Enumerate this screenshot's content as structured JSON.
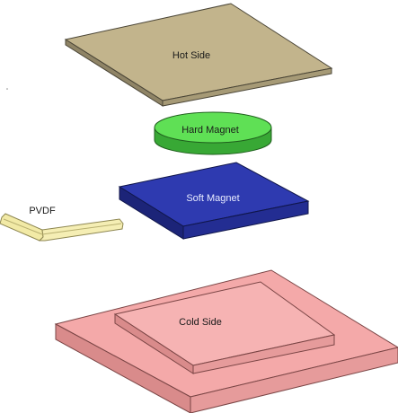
{
  "diagram": {
    "components": {
      "hot_side": {
        "label": "Hot Side",
        "color": "#c2b48c"
      },
      "hard_magnet": {
        "label": "Hard Magnet",
        "color": "#4fd44a"
      },
      "soft_magnet": {
        "label": "Soft Magnet",
        "color": "#2e3ab0"
      },
      "pvdf": {
        "label": "PVDF",
        "color": "#f2eaa6"
      },
      "cold_side": {
        "label": "Cold Side",
        "color": "#f4a9a9"
      }
    }
  }
}
